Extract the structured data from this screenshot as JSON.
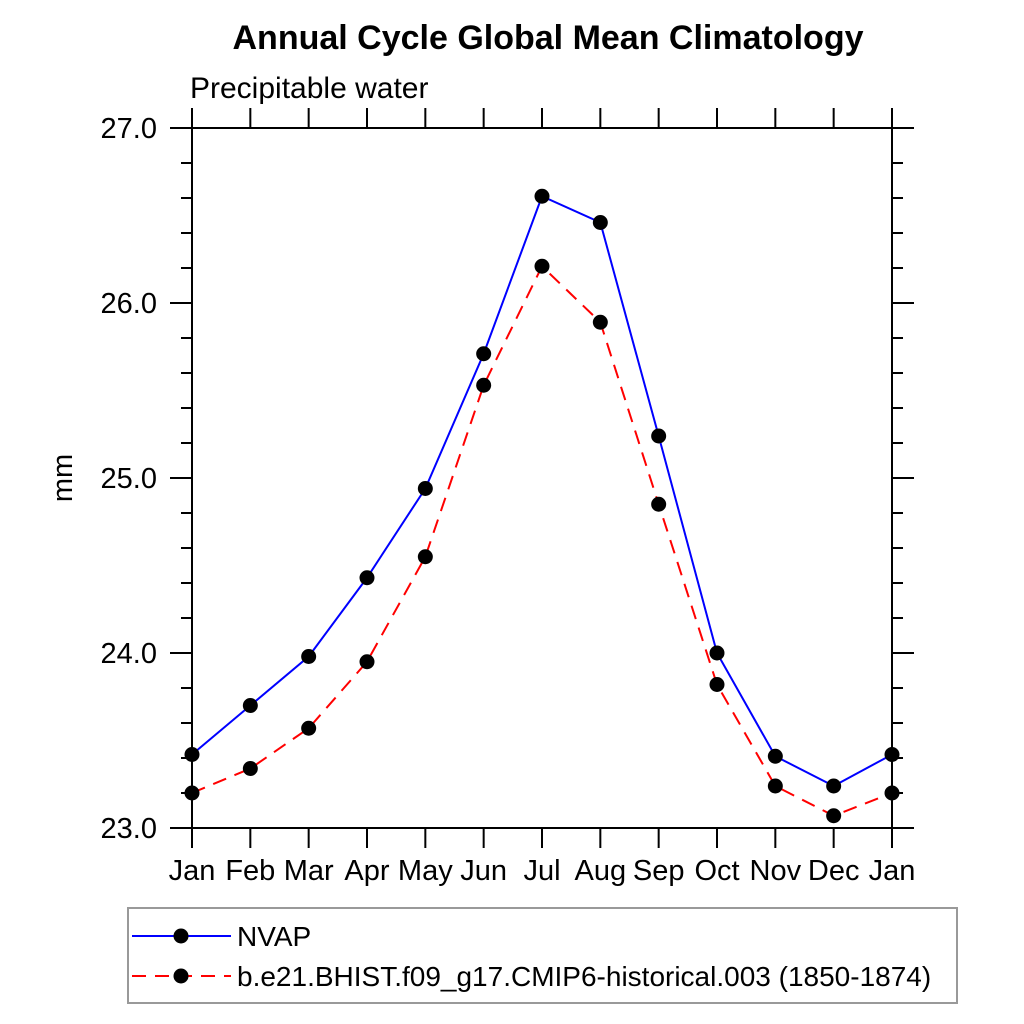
{
  "title": "Annual Cycle Global Mean Climatology",
  "subtitle": "Precipitable water",
  "colors": {
    "background": "#ffffff",
    "axis": "#000000",
    "marker": "#000000",
    "legend_border": "#999999",
    "series_nvap": "#0000ff",
    "series_model": "#ff0000"
  },
  "chart_data": {
    "type": "line",
    "title": "Annual Cycle Global Mean Climatology",
    "subtitle": "Precipitable water",
    "xlabel": "",
    "ylabel": "mm",
    "x_tick_labels": [
      "Jan",
      "Feb",
      "Mar",
      "Apr",
      "May",
      "Jun",
      "Jul",
      "Aug",
      "Sep",
      "Oct",
      "Nov",
      "Dec",
      "Jan"
    ],
    "y_ticks": [
      23.0,
      24.0,
      25.0,
      26.0,
      27.0
    ],
    "y_tick_labels": [
      "23.0",
      "24.0",
      "25.0",
      "26.0",
      "27.0"
    ],
    "ylim": [
      23.0,
      27.0
    ],
    "y_minor_step": 0.2,
    "grid": false,
    "legend_position": "bottom-left-box",
    "series": [
      {
        "name": "NVAP",
        "color": "#0000ff",
        "line_style": "solid",
        "marker": "filled-circle",
        "marker_color": "#000000",
        "values": [
          23.42,
          23.7,
          23.98,
          24.43,
          24.94,
          25.71,
          26.61,
          26.46,
          25.24,
          24.0,
          23.41,
          23.24,
          23.42
        ]
      },
      {
        "name": "b.e21.BHIST.f09_g17.CMIP6-historical.003 (1850-1874)",
        "color": "#ff0000",
        "line_style": "dashed",
        "marker": "filled-circle",
        "marker_color": "#000000",
        "values": [
          23.2,
          23.34,
          23.57,
          23.95,
          24.55,
          25.53,
          26.21,
          25.89,
          24.85,
          23.82,
          23.24,
          23.07,
          23.2
        ]
      }
    ]
  }
}
